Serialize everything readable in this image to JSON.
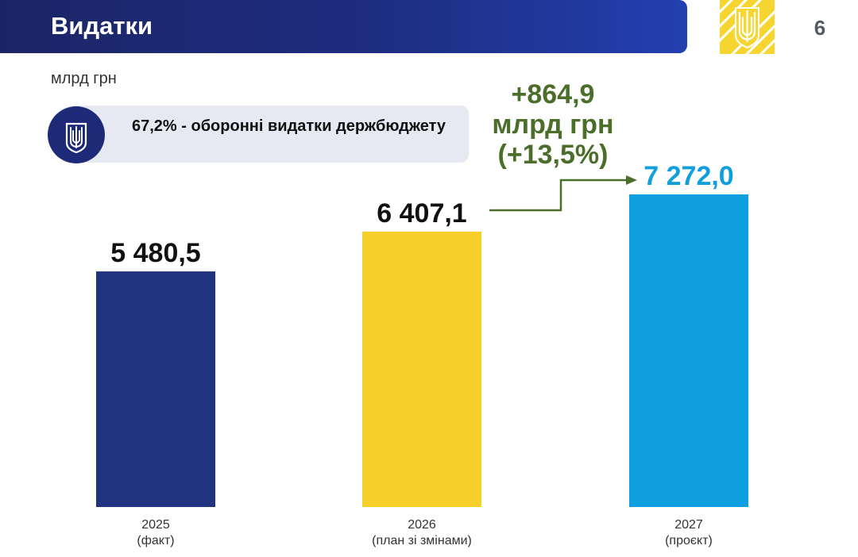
{
  "header": {
    "title": "Видатки",
    "page_number": "6"
  },
  "unit": "млрд грн",
  "info_box": {
    "text": "67,2% - оборонні видатки держбюджету"
  },
  "change": {
    "line1": "+864,9",
    "line2": "млрд грн",
    "line3": "(+13,5%)"
  },
  "colors": {
    "header": "#1d2d80",
    "change": "#4b6e2a",
    "bar_2025": "#22347f",
    "bar_2026": "#f7cf2a",
    "bar_2027": "#0f9ede"
  },
  "icons": [
    "ukraine-trident-emblem-icon",
    "trident-icon",
    "arrow-right-icon"
  ],
  "chart_data": {
    "type": "bar",
    "categories": [
      {
        "year": "2025",
        "note": "(факт)"
      },
      {
        "year": "2026",
        "note": "(план зі змінами)"
      },
      {
        "year": "2027",
        "note": "(проєкт)"
      }
    ],
    "values": [
      5480.5,
      6407.1,
      7272.0
    ],
    "value_labels": [
      "5 480,5",
      "6 407,1",
      "7 272,0"
    ],
    "bar_colors": [
      "#22347f",
      "#f7cf2a",
      "#0f9ede"
    ],
    "label_colors": [
      "#111111",
      "#111111",
      "#0f9ede"
    ],
    "ylim": [
      0,
      7272.0
    ],
    "title": "",
    "xlabel": "",
    "ylabel": "",
    "grid": false
  }
}
